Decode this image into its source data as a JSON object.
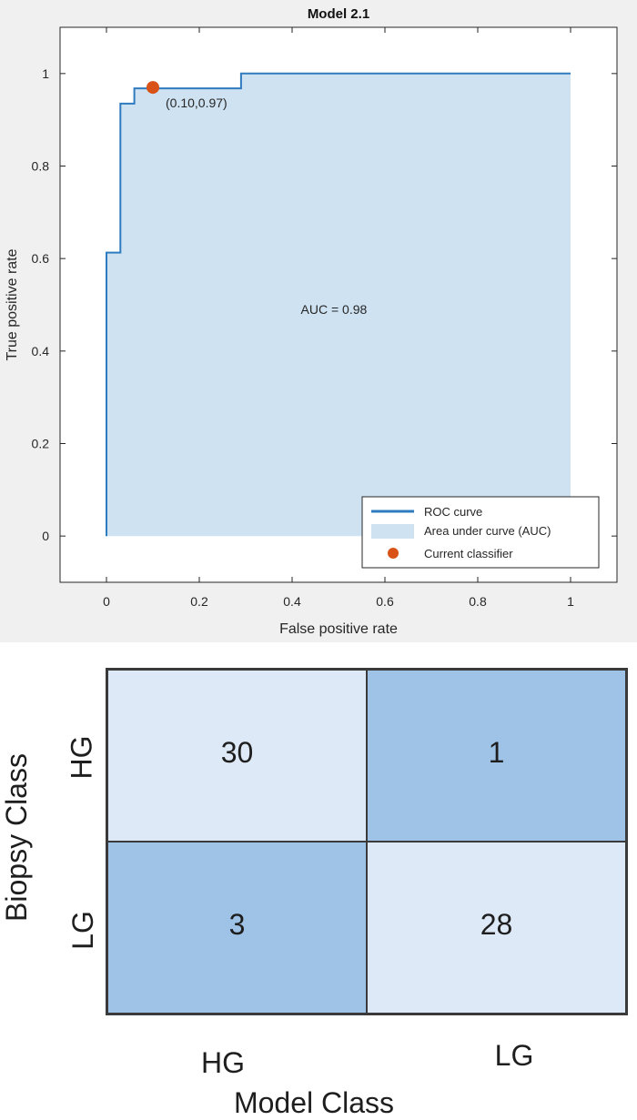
{
  "chart_data": [
    {
      "type": "line",
      "title": "Model 2.1",
      "xlabel": "False positive rate",
      "ylabel": "True positive rate",
      "xlim": [
        -0.1,
        1.1
      ],
      "ylim": [
        -0.1,
        1.1
      ],
      "xticks": [
        0,
        0.2,
        0.4,
        0.6,
        0.8,
        1
      ],
      "yticks": [
        0,
        0.2,
        0.4,
        0.6,
        0.8,
        1
      ],
      "xtick_labels": [
        "0",
        "0.2",
        "0.4",
        "0.6",
        "0.8",
        "1"
      ],
      "ytick_labels": [
        "0",
        "0.2",
        "0.4",
        "0.6",
        "0.8",
        "1"
      ],
      "series": [
        {
          "name": "ROC curve",
          "color": "#2f7bbf",
          "x": [
            0,
            0,
            0.03,
            0.03,
            0.06,
            0.06,
            0.29,
            0.29,
            1
          ],
          "y": [
            0,
            0.613,
            0.613,
            0.935,
            0.935,
            0.968,
            0.968,
            1,
            1
          ]
        }
      ],
      "area_label": "Area under curve (AUC)",
      "area_color": "#cfe2f1",
      "current_classifier": {
        "name": "Current classifier",
        "x": 0.1,
        "y": 0.97,
        "label": "(0.10,0.97)",
        "color": "#d95319"
      },
      "annotation": {
        "text": "AUC = 0.98",
        "x": 0.49,
        "y": 0.49
      },
      "legend_position": "bottom-right",
      "grid": false
    },
    {
      "type": "heatmap",
      "ylabel": "Biopsy Class",
      "xlabel": "Model Class",
      "rows": [
        "HG",
        "LG"
      ],
      "columns": [
        "HG",
        "LG"
      ],
      "values": [
        [
          30,
          1
        ],
        [
          3,
          28
        ]
      ],
      "colors": {
        "high": "#9ec3e6",
        "low": "#dde9f6"
      }
    }
  ]
}
